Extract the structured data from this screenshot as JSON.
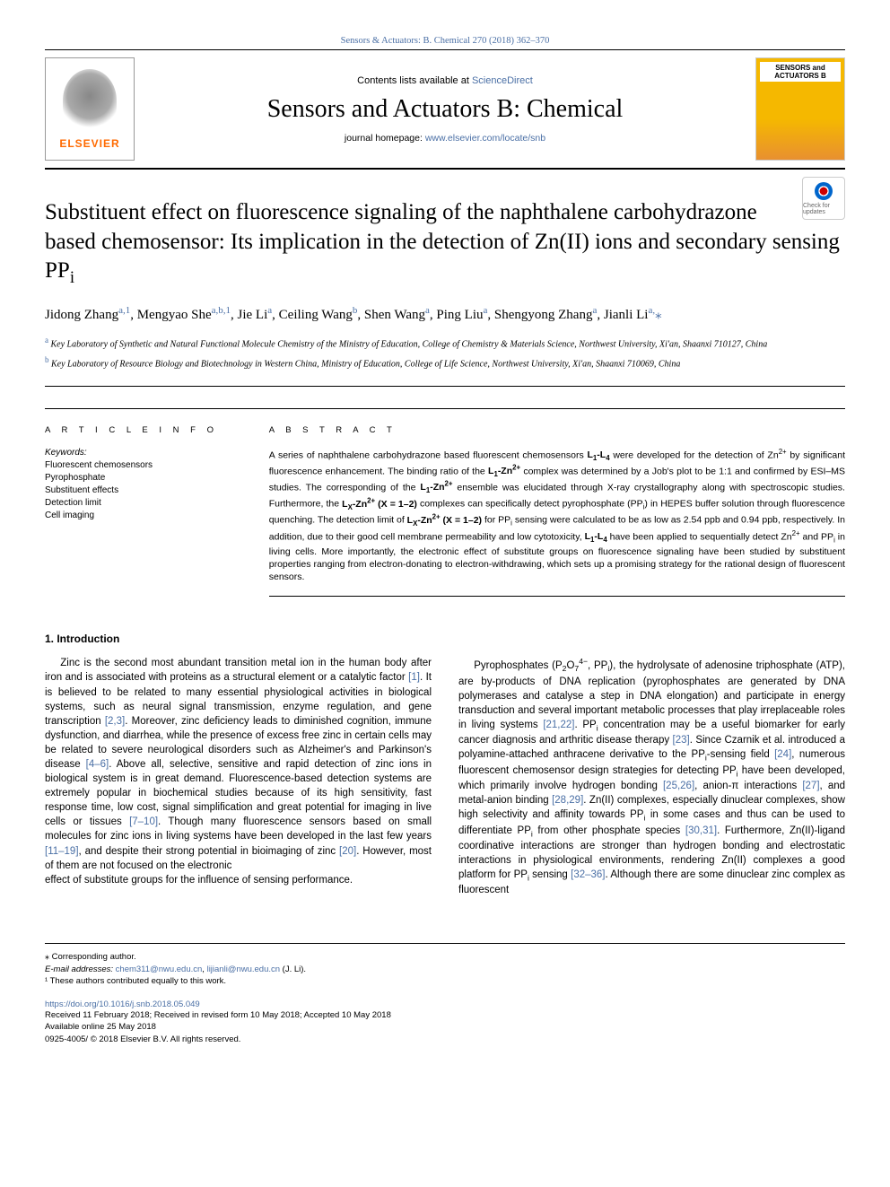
{
  "header": {
    "running_head": "Sensors & Actuators: B. Chemical 270 (2018) 362–370",
    "contents_prefix": "Contents lists available at ",
    "sd_text": "ScienceDirect",
    "journal_title": "Sensors and Actuators B: Chemical",
    "homepage_prefix": "journal homepage: ",
    "homepage_url": "www.elsevier.com/locate/snb",
    "publisher_logo": "ELSEVIER",
    "cover_label": "SENSORS and ACTUATORS B",
    "check_updates": "Check for updates"
  },
  "article": {
    "title_html": "Substituent effect on fluorescence signaling of the naphthalene carbohydrazone based chemosensor: Its implication in the detection of Zn(II) ions and secondary sensing PP<sub>i</sub>",
    "authors_html": "Jidong Zhang<span class='aff'>a,1</span>, Mengyao She<span class='aff'>a,b,1</span>, Jie Li<span class='aff'>a</span>, Ceiling Wang<span class='aff'>b</span>, Shen Wang<span class='aff'>a</span>, Ping Liu<span class='aff'>a</span>, Shengyong Zhang<span class='aff'>a</span>, Jianli Li<span class='aff'>a,</span><span class='corr'>⁎</span>",
    "affiliations": [
      {
        "label": "a",
        "text": "Key Laboratory of Synthetic and Natural Functional Molecule Chemistry of the Ministry of Education, College of Chemistry & Materials Science, Northwest University, Xi'an, Shaanxi 710127, China"
      },
      {
        "label": "b",
        "text": "Key Laboratory of Resource Biology and Biotechnology in Western China, Ministry of Education, College of Life Science, Northwest University, Xi'an, Shaanxi 710069, China"
      }
    ]
  },
  "info": {
    "heading": "A R T I C L E  I N F O",
    "kw_label": "Keywords:",
    "keywords": [
      "Fluorescent chemosensors",
      "Pyrophosphate",
      "Substituent effects",
      "Detection limit",
      "Cell imaging"
    ]
  },
  "abstract": {
    "heading": "A B S T R A C T",
    "text_html": "A series of naphthalene carbohydrazone based fluorescent chemosensors <b>L<sub>1</sub>-L<sub>4</sub></b> were developed for the detection of Zn<sup>2+</sup> by significant fluorescence enhancement. The binding ratio of the <b>L<sub>1</sub>-Zn<sup>2+</sup></b> complex was determined by a Job's plot to be 1:1 and confirmed by ESI–MS studies. The corresponding of the <b>L<sub>1</sub>-Zn<sup>2+</sup></b> ensemble was elucidated through X-ray crystallography along with spectroscopic studies. Furthermore, the <b>L<sub>X</sub>-Zn<sup>2+</sup> (X = 1–2)</b> complexes can specifically detect pyrophosphate (PP<sub>i</sub>) in HEPES buffer solution through fluorescence quenching. The detection limit of <b>L<sub>X</sub>-Zn<sup>2+</sup> (X = 1–2)</b> for PP<sub>i</sub> sensing were calculated to be as low as 2.54 ppb and 0.94 ppb, respectively. In addition, due to their good cell membrane permeability and low cytotoxicity, <b>L<sub>1</sub>-L<sub>4</sub></b> have been applied to sequentially detect Zn<sup>2+</sup> and PP<sub>i</sub> in living cells. More importantly, the electronic effect of substitute groups on fluorescence signaling have been studied by substituent properties ranging from electron-donating to electron-withdrawing, which sets up a promising strategy for the rational design of fluorescent sensors."
  },
  "body": {
    "section_heading": "1. Introduction",
    "col1_html": "Zinc is the second most abundant transition metal ion in the human body after iron and is associated with proteins as a structural element or a catalytic factor <span class='ref-link'>[1]</span>. It is believed to be related to many essential physiological activities in biological systems, such as neural signal transmission, enzyme regulation, and gene transcription <span class='ref-link'>[2,3]</span>. Moreover, zinc deficiency leads to diminished cognition, immune dysfunction, and diarrhea, while the presence of excess free zinc in certain cells may be related to severe neurological disorders such as Alzheimer's and Parkinson's disease <span class='ref-link'>[4–6]</span>. Above all, selective, sensitive and rapid detection of zinc ions in biological system is in great demand. Fluorescence-based detection systems are extremely popular in biochemical studies because of its high sensitivity, fast response time, low cost, signal simplification and great potential for imaging in live cells or tissues <span class='ref-link'>[7–10]</span>. Though many fluorescence sensors based on small molecules for zinc ions in living systems have been developed in the last few years <span class='ref-link'>[11–19]</span>, and despite their strong potential in bioimaging of zinc <span class='ref-link'>[20]</span>. However, most of them are not focused on the electronic",
    "col2_html": "effect of substitute groups for the influence of sensing performance.</p><p>Pyrophosphates (P<sub>2</sub>O<sub>7</sub><sup>4−</sup>, PP<sub>i</sub>), the hydrolysate of adenosine triphosphate (ATP), are by-products of DNA replication (pyrophosphates are generated by DNA polymerases and catalyse a step in DNA elongation) and participate in energy transduction and several important metabolic processes that play irreplaceable roles in living systems <span class='ref-link'>[21,22]</span>. PP<sub>i</sub> concentration may be a useful biomarker for early cancer diagnosis and arthritic disease therapy <span class='ref-link'>[23]</span>. Since Czarnik et al. introduced a polyamine-attached anthracene derivative to the PP<sub>i</sub>-sensing field <span class='ref-link'>[24]</span>, numerous fluorescent chemosensor design strategies for detecting PP<sub>i</sub> have been developed, which primarily involve hydrogen bonding <span class='ref-link'>[25,26]</span>, anion-π interactions <span class='ref-link'>[27]</span>, and metal-anion binding <span class='ref-link'>[28,29]</span>. Zn(II) complexes, especially dinuclear complexes, show high selectivity and affinity towards PP<sub>i</sub> in some cases and thus can be used to differentiate PP<sub>i</sub> from other phosphate species <span class='ref-link'>[30,31]</span>. Furthermore, Zn(II)-ligand coordinative interactions are stronger than hydrogen bonding and electrostatic interactions in physiological environments, rendering Zn(II) complexes a good platform for PP<sub>i</sub> sensing <span class='ref-link'>[32–36]</span>. Although there are some dinuclear zinc complex as fluorescent"
  },
  "footer": {
    "corr_note": "⁎ Corresponding author.",
    "email_label": "E-mail addresses: ",
    "email1": "chem311@nwu.edu.cn",
    "email2": "lijianli@nwu.edu.cn",
    "email_suffix": " (J. Li).",
    "contrib_note": "¹ These authors contributed equally to this work.",
    "doi": "https://doi.org/10.1016/j.snb.2018.05.049",
    "received": "Received 11 February 2018; Received in revised form 10 May 2018; Accepted 10 May 2018",
    "available": "Available online 25 May 2018",
    "copyright": "0925-4005/ © 2018 Elsevier B.V. All rights reserved."
  },
  "colors": {
    "link": "#4a6fa5",
    "elsevier_orange": "#ff6a00",
    "cover_yellow": "#f5b800",
    "text": "#000000",
    "bg": "#ffffff"
  },
  "typography": {
    "title_fontsize": 25,
    "journal_title_fontsize": 28,
    "authors_fontsize": 15,
    "body_fontsize": 11.5,
    "abstract_fontsize": 10.5,
    "footer_fontsize": 9.5
  }
}
